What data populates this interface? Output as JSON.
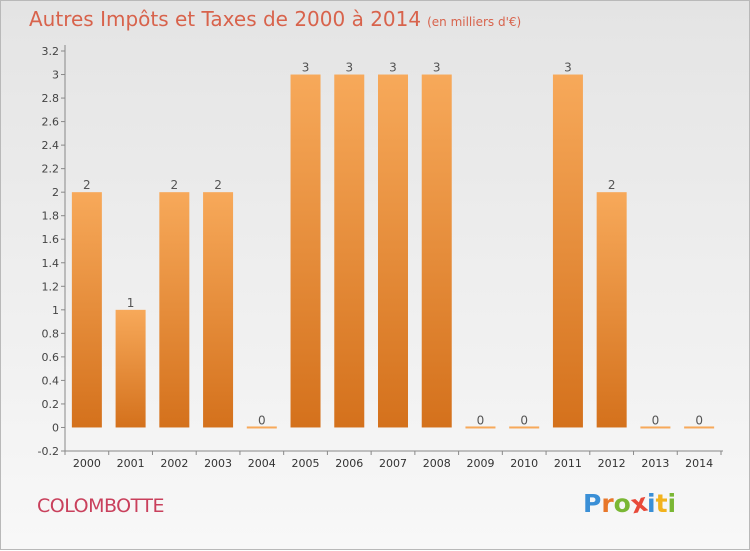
{
  "title": "Autres Impôts et Taxes de 2000 à 2014",
  "subtitle": "(en milliers d'€)",
  "commune": "COLOMBOTTE",
  "logo": {
    "text": "Proxiti",
    "letter_colors": [
      "#3a8fd6",
      "#e8772a",
      "#7ab734",
      "#e84a3a",
      "#3a8fd6",
      "#f2b21c",
      "#7ab734"
    ]
  },
  "chart_data": {
    "type": "bar",
    "categories": [
      "2000",
      "2001",
      "2002",
      "2003",
      "2004",
      "2005",
      "2006",
      "2007",
      "2008",
      "2009",
      "2010",
      "2011",
      "2012",
      "2013",
      "2014"
    ],
    "values": [
      2,
      1,
      2,
      2,
      0,
      3,
      3,
      3,
      3,
      0,
      0,
      3,
      2,
      0,
      0
    ],
    "data_labels": [
      "2",
      "1",
      "2",
      "2",
      "0",
      "3",
      "3",
      "3",
      "3",
      "0",
      "0",
      "3",
      "2",
      "0",
      "0"
    ],
    "yticks": [
      "-0.2",
      "0",
      "0.2",
      "0.4",
      "0.6",
      "0.8",
      "1",
      "1.2",
      "1.4",
      "1.6",
      "1.8",
      "2",
      "2.2",
      "2.4",
      "2.6",
      "2.8",
      "3",
      "3.2"
    ],
    "ylim": [
      -0.2,
      3.2
    ],
    "grid": false,
    "bar_color_top": "#f7a95a",
    "bar_color_bottom": "#d4711c",
    "title_color": "#d8634c",
    "xlabel": "",
    "ylabel": ""
  }
}
